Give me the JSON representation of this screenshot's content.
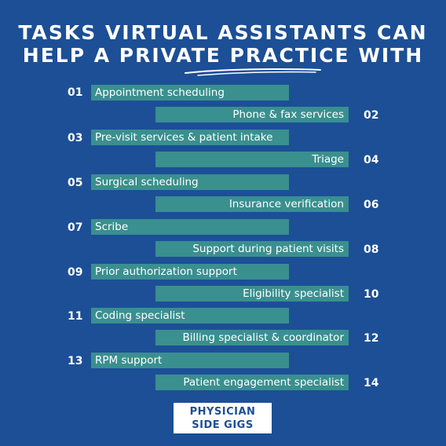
{
  "title": {
    "line1": "TASKS VIRTUAL ASSISTANTS CAN",
    "line2": "HELP A PRIVATE PRACTICE WITH"
  },
  "tasks": [
    {
      "num": "01",
      "label": "Appointment scheduling"
    },
    {
      "num": "02",
      "label": "Phone & fax services"
    },
    {
      "num": "03",
      "label": "Pre-visit services & patient intake"
    },
    {
      "num": "04",
      "label": "Triage"
    },
    {
      "num": "05",
      "label": "Surgical scheduling"
    },
    {
      "num": "06",
      "label": "Insurance verification"
    },
    {
      "num": "07",
      "label": "Scribe"
    },
    {
      "num": "08",
      "label": "Support during patient visits"
    },
    {
      "num": "09",
      "label": "Prior authorization support"
    },
    {
      "num": "10",
      "label": "Eligibility specialist"
    },
    {
      "num": "11",
      "label": "Coding specialist"
    },
    {
      "num": "12",
      "label": "Billing specialist & coordinator"
    },
    {
      "num": "13",
      "label": "RPM support"
    },
    {
      "num": "14",
      "label": "Patient engagement specialist"
    }
  ],
  "logo": {
    "line1": "PHYSICIAN",
    "line2": "SIDE GIGS"
  },
  "colors": {
    "background": "#1c4f96",
    "bar": "#3a8f8f",
    "text": "#ffffff"
  }
}
